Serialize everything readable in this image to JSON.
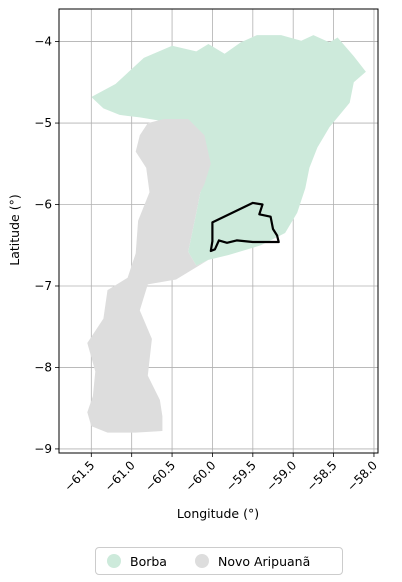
{
  "chart_data": {
    "type": "map",
    "xlabel": "Longitude (°)",
    "ylabel": "Latitude (°)",
    "xlim": [
      -61.9,
      -57.95
    ],
    "ylim": [
      -9.05,
      -3.6
    ],
    "x_ticks": [
      -61.5,
      -61.0,
      -60.5,
      -60.0,
      -59.5,
      -59.0,
      -58.5,
      -58.0
    ],
    "x_tick_labels": [
      "−61.5",
      "−61.0",
      "−60.5",
      "−60.0",
      "−59.5",
      "−59.0",
      "−58.5",
      "−58.0"
    ],
    "y_ticks": [
      -4,
      -5,
      -6,
      -7,
      -8,
      -9
    ],
    "y_tick_labels": [
      "−4",
      "−5",
      "−6",
      "−7",
      "−8",
      "−9"
    ],
    "grid": true,
    "legend_position": "bottom-center",
    "regions": [
      {
        "name": "Borba",
        "color": "#cdeadb",
        "polygon": [
          [
            -61.5,
            -4.68
          ],
          [
            -61.2,
            -4.52
          ],
          [
            -60.85,
            -4.2
          ],
          [
            -60.5,
            -4.05
          ],
          [
            -60.2,
            -4.12
          ],
          [
            -60.05,
            -4.03
          ],
          [
            -59.85,
            -4.15
          ],
          [
            -59.65,
            -4.01
          ],
          [
            -59.45,
            -3.92
          ],
          [
            -59.15,
            -3.92
          ],
          [
            -58.9,
            -3.99
          ],
          [
            -58.75,
            -3.92
          ],
          [
            -58.55,
            -4.01
          ],
          [
            -58.45,
            -3.95
          ],
          [
            -58.25,
            -4.18
          ],
          [
            -58.1,
            -4.37
          ],
          [
            -58.25,
            -4.5
          ],
          [
            -58.3,
            -4.75
          ],
          [
            -58.55,
            -5.05
          ],
          [
            -58.7,
            -5.3
          ],
          [
            -58.8,
            -5.55
          ],
          [
            -58.85,
            -5.8
          ],
          [
            -58.95,
            -6.1
          ],
          [
            -59.1,
            -6.35
          ],
          [
            -59.4,
            -6.5
          ],
          [
            -59.8,
            -6.62
          ],
          [
            -60.05,
            -6.68
          ],
          [
            -60.2,
            -6.75
          ],
          [
            -60.3,
            -6.58
          ],
          [
            -60.2,
            -6.1
          ],
          [
            -60.15,
            -5.85
          ],
          [
            -60.05,
            -5.4
          ],
          [
            -60.3,
            -5.1
          ],
          [
            -60.6,
            -4.98
          ],
          [
            -60.9,
            -4.93
          ],
          [
            -61.15,
            -4.9
          ],
          [
            -61.35,
            -4.82
          ]
        ]
      },
      {
        "name": "Novo Aripuanã",
        "color": "#dddddd",
        "polygon": [
          [
            -60.8,
            -5.0
          ],
          [
            -60.6,
            -4.95
          ],
          [
            -60.3,
            -4.95
          ],
          [
            -60.1,
            -5.15
          ],
          [
            -60.02,
            -5.5
          ],
          [
            -60.1,
            -5.75
          ],
          [
            -60.15,
            -5.85
          ],
          [
            -60.2,
            -6.1
          ],
          [
            -60.3,
            -6.58
          ],
          [
            -60.2,
            -6.75
          ],
          [
            -60.05,
            -6.68
          ],
          [
            -60.45,
            -6.92
          ],
          [
            -60.8,
            -6.98
          ],
          [
            -60.9,
            -7.3
          ],
          [
            -60.75,
            -7.65
          ],
          [
            -60.8,
            -8.1
          ],
          [
            -60.65,
            -8.4
          ],
          [
            -60.62,
            -8.6
          ],
          [
            -60.62,
            -8.78
          ],
          [
            -60.95,
            -8.8
          ],
          [
            -61.3,
            -8.8
          ],
          [
            -61.5,
            -8.72
          ],
          [
            -61.55,
            -8.55
          ],
          [
            -61.48,
            -8.35
          ],
          [
            -61.45,
            -8.05
          ],
          [
            -61.55,
            -7.7
          ],
          [
            -61.35,
            -7.4
          ],
          [
            -61.3,
            -7.05
          ],
          [
            -61.05,
            -6.9
          ],
          [
            -60.95,
            -6.6
          ],
          [
            -60.92,
            -6.2
          ],
          [
            -60.78,
            -5.85
          ],
          [
            -60.82,
            -5.55
          ],
          [
            -60.95,
            -5.35
          ],
          [
            -60.9,
            -5.15
          ]
        ]
      }
    ],
    "outline": {
      "polygon": [
        [
          -60.0,
          -6.22
        ],
        [
          -59.5,
          -5.98
        ],
        [
          -59.38,
          -6.0
        ],
        [
          -59.42,
          -6.12
        ],
        [
          -59.28,
          -6.15
        ],
        [
          -59.25,
          -6.3
        ],
        [
          -59.2,
          -6.38
        ],
        [
          -59.18,
          -6.46
        ],
        [
          -59.5,
          -6.46
        ],
        [
          -59.7,
          -6.44
        ],
        [
          -59.82,
          -6.47
        ],
        [
          -59.92,
          -6.44
        ],
        [
          -59.97,
          -6.55
        ],
        [
          -60.02,
          -6.57
        ],
        [
          -60.0,
          -6.45
        ]
      ]
    }
  }
}
